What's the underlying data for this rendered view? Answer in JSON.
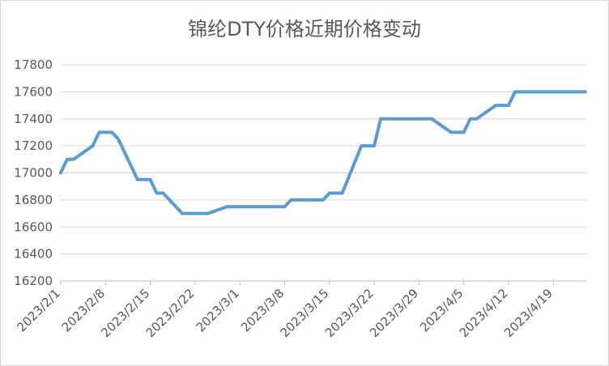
{
  "chart_data": {
    "type": "line",
    "title": "锦纶DTY价格近期价格变动",
    "xlabel": "",
    "ylabel": "",
    "ylim": [
      16200,
      17800
    ],
    "yticks": [
      16200,
      16400,
      16600,
      16800,
      17000,
      17200,
      17400,
      17600,
      17800
    ],
    "xtick_labels": [
      "2023/2/1",
      "2023/2/8",
      "2023/2/15",
      "2023/2/22",
      "2023/3/1",
      "2023/3/8",
      "2023/3/15",
      "2023/3/22",
      "2023/3/29",
      "2023/4/5",
      "2023/4/12",
      "2023/4/19"
    ],
    "grid": true,
    "legend": "none",
    "line_color": "#5b9bd5",
    "x": [
      "2023-02-01",
      "2023-02-02",
      "2023-02-03",
      "2023-02-06",
      "2023-02-07",
      "2023-02-08",
      "2023-02-09",
      "2023-02-10",
      "2023-02-13",
      "2023-02-14",
      "2023-02-15",
      "2023-02-16",
      "2023-02-17",
      "2023-02-20",
      "2023-02-21",
      "2023-02-22",
      "2023-02-23",
      "2023-02-24",
      "2023-02-27",
      "2023-02-28",
      "2023-03-01",
      "2023-03-02",
      "2023-03-03",
      "2023-03-06",
      "2023-03-07",
      "2023-03-08",
      "2023-03-09",
      "2023-03-10",
      "2023-03-13",
      "2023-03-14",
      "2023-03-15",
      "2023-03-16",
      "2023-03-17",
      "2023-03-20",
      "2023-03-21",
      "2023-03-22",
      "2023-03-23",
      "2023-03-24",
      "2023-03-27",
      "2023-03-28",
      "2023-03-29",
      "2023-03-30",
      "2023-03-31",
      "2023-04-03",
      "2023-04-04",
      "2023-04-05",
      "2023-04-06",
      "2023-04-07",
      "2023-04-10",
      "2023-04-11",
      "2023-04-12",
      "2023-04-13",
      "2023-04-14",
      "2023-04-17",
      "2023-04-18",
      "2023-04-19",
      "2023-04-20",
      "2023-04-21",
      "2023-04-24"
    ],
    "series": [
      {
        "values": [
          17000,
          17100,
          17100,
          17200,
          17300,
          17300,
          17300,
          17250,
          16950,
          16950,
          16950,
          16850,
          16850,
          16700,
          16700,
          16700,
          16700,
          16700,
          16750,
          16750,
          16750,
          16750,
          16750,
          16750,
          16750,
          16750,
          16800,
          16800,
          16800,
          16800,
          16850,
          16850,
          16850,
          17200,
          17200,
          17200,
          17400,
          17400,
          17400,
          17400,
          17400,
          17400,
          17400,
          17300,
          17300,
          17300,
          17400,
          17400,
          17500,
          17500,
          17500,
          17600,
          17600,
          17600,
          17600,
          17600,
          17600,
          17600,
          17600
        ]
      }
    ]
  }
}
